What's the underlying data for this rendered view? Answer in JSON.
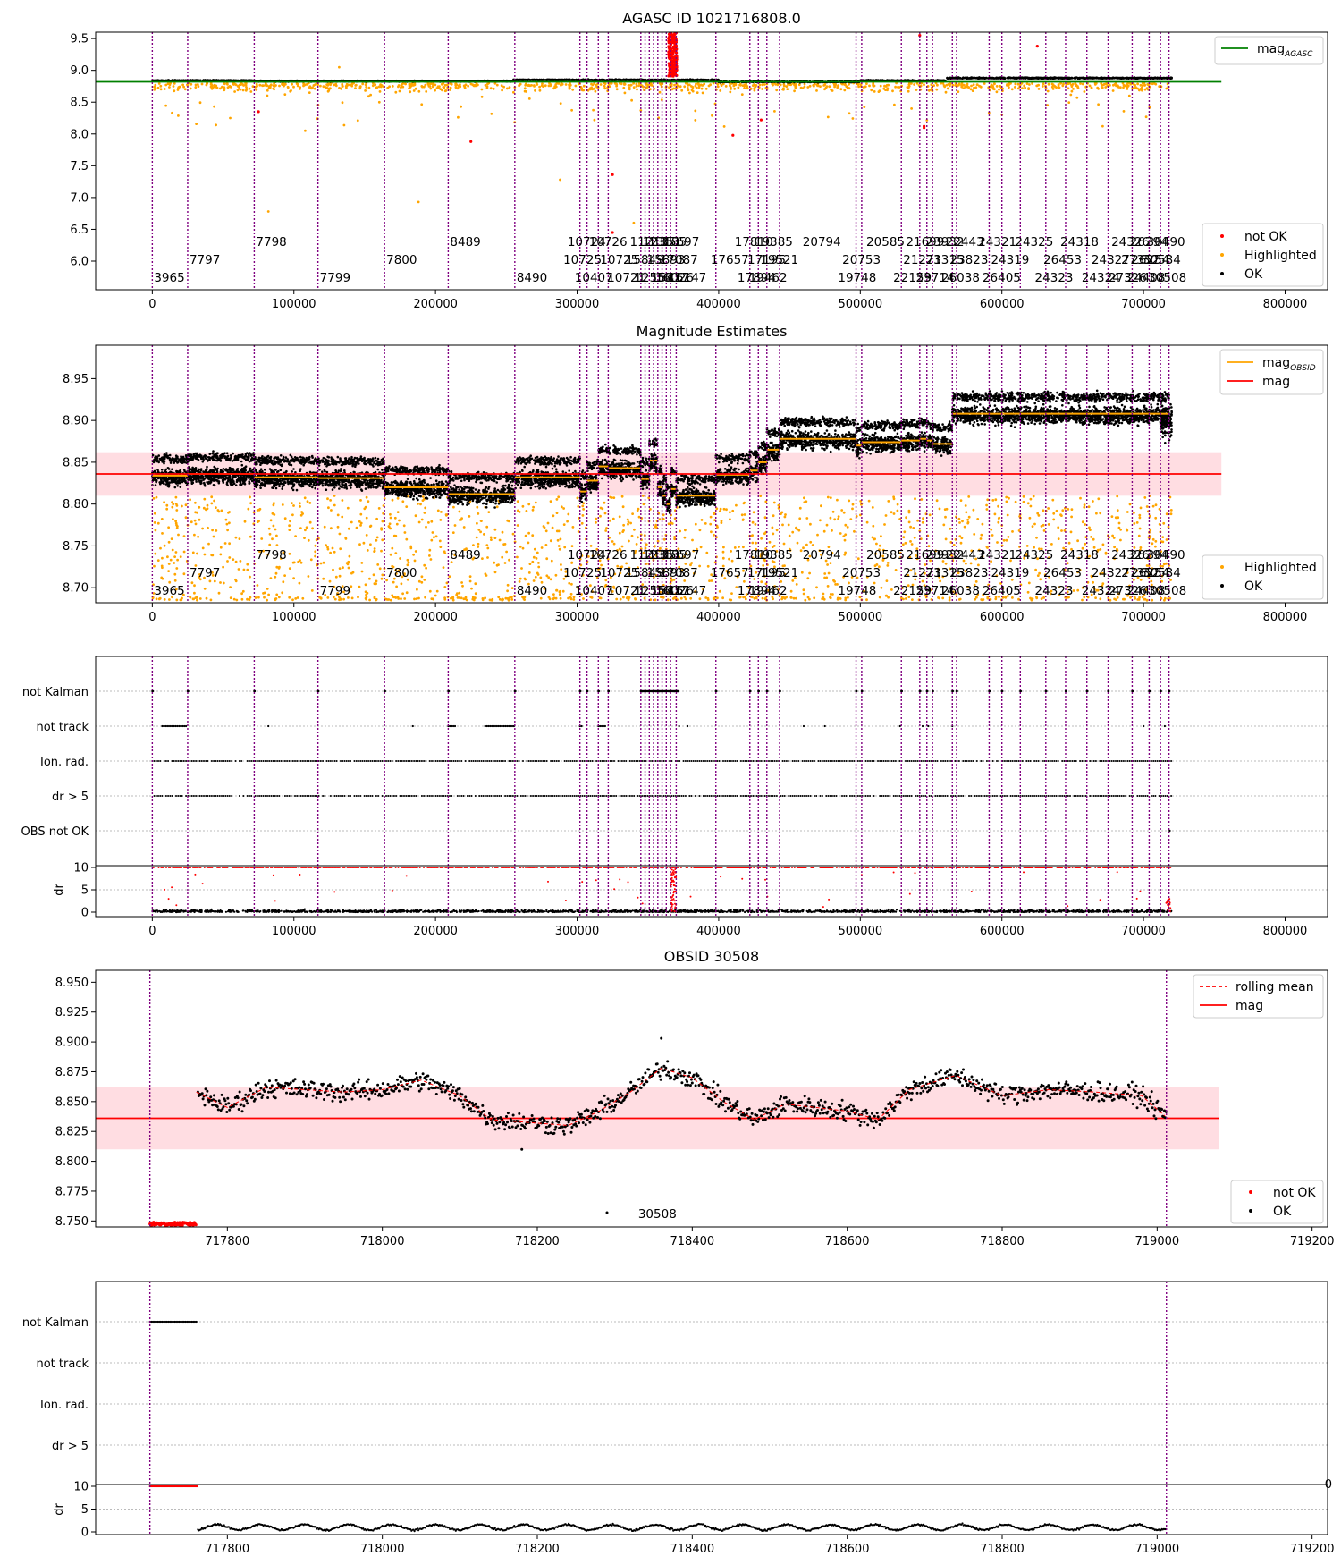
{
  "colors": {
    "ok": "#000000",
    "not_ok": "#ff0000",
    "highlighted": "#ffa500",
    "mag_agasc": "#008000",
    "mag": "#ff0000",
    "mag_obsid": "#ffa500",
    "obsid_line": "#800080",
    "band": "#ffdde2",
    "grid": "#bbbbbb"
  },
  "chart_data": [
    {
      "type": "scatter",
      "title": "AGASC ID 1021716808.0",
      "xlim": [
        -40000,
        830000
      ],
      "ylim": [
        5.55,
        9.6
      ],
      "xticks": [
        0,
        100000,
        200000,
        300000,
        400000,
        500000,
        600000,
        700000,
        800000
      ],
      "yticks": [
        6.0,
        6.5,
        7.0,
        7.5,
        8.0,
        8.5,
        9.0,
        9.5
      ],
      "mag_agasc": 8.82,
      "legend_lines": [
        {
          "name": "mag$_{AGASC}$",
          "label": "mag",
          "sub": "AGASC",
          "color": "#008000"
        }
      ],
      "legend_points": [
        "not OK",
        "Highlighted",
        "OK"
      ],
      "series": [
        {
          "name": "OK",
          "color": "#000000",
          "segments": [
            [
              0,
              72000,
              8.84
            ],
            [
              72000,
              255000,
              8.83
            ],
            [
              255000,
              400000,
              8.85
            ],
            [
              400000,
              500000,
              8.82
            ],
            [
              500000,
              560000,
              8.84
            ],
            [
              560000,
              720000,
              8.88
            ]
          ]
        },
        {
          "name": "Highlighted",
          "color": "#ffa500",
          "band": [
            8.65,
            8.88
          ]
        },
        {
          "name": "not OK",
          "color": "#ff0000",
          "points": [
            [
              367000,
              9.55
            ],
            [
              368500,
              9.2
            ],
            [
              369000,
              8.95
            ],
            [
              75000,
              8.35
            ],
            [
              225000,
              7.88
            ],
            [
              325000,
              7.36
            ],
            [
              325000,
              6.45
            ],
            [
              410000,
              7.98
            ],
            [
              430000,
              8.22
            ],
            [
              542000,
              9.55
            ],
            [
              545000,
              8.12
            ],
            [
              545000,
              8.1
            ],
            [
              625000,
              9.38
            ]
          ]
        }
      ]
    },
    {
      "type": "scatter",
      "title": "Magnitude Estimates",
      "xlim": [
        -40000,
        830000
      ],
      "ylim": [
        8.682,
        8.99
      ],
      "xticks": [
        0,
        100000,
        200000,
        300000,
        400000,
        500000,
        600000,
        700000,
        800000
      ],
      "yticks": [
        8.7,
        8.75,
        8.8,
        8.85,
        8.9,
        8.95
      ],
      "mag": 8.836,
      "mag_band": [
        8.81,
        8.862
      ],
      "legend_lines": [
        {
          "label": "mag",
          "sub": "OBSID",
          "color": "#ffa500"
        },
        {
          "label": "mag",
          "sub": "",
          "color": "#ff0000"
        }
      ],
      "legend_points": [
        "Highlighted",
        "OK"
      ],
      "obsid_mags": [
        8.834,
        8.836,
        8.832,
        8.831,
        8.82,
        8.812,
        8.832,
        8.815,
        8.828,
        8.845,
        8.843,
        8.83,
        8.83,
        8.852,
        8.852,
        8.82,
        8.81,
        8.8,
        8.818,
        8.81,
        8.835,
        8.84,
        8.85,
        8.865,
        8.878,
        8.87,
        8.874,
        8.876,
        8.878,
        8.876,
        8.872,
        8.908
      ]
    },
    {
      "type": "scatter",
      "title": "",
      "xlim": [
        -40000,
        830000
      ],
      "xticks": [
        0,
        100000,
        200000,
        300000,
        400000,
        500000,
        600000,
        700000,
        800000
      ],
      "flag_labels": [
        "not Kalman",
        "not track",
        "Ion. rad.",
        "dr > 5",
        "OBS not OK"
      ],
      "dr_yticks": [
        0,
        5,
        10
      ],
      "dr_label": "dr"
    },
    {
      "type": "scatter",
      "title": "OBSID 30508",
      "xlim": [
        717630,
        719220
      ],
      "ylim": [
        8.745,
        8.96
      ],
      "xticks": [
        717800,
        718000,
        718200,
        718400,
        718600,
        718800,
        719000,
        719200
      ],
      "yticks": [
        8.75,
        8.775,
        8.8,
        8.825,
        8.85,
        8.875,
        8.9,
        8.925,
        8.95
      ],
      "mag": 8.836,
      "mag_band": [
        8.81,
        8.862
      ],
      "legend_lines": [
        {
          "label": "rolling mean",
          "sub": "",
          "color": "#ff0000",
          "dashed": true
        },
        {
          "label": "mag",
          "sub": "",
          "color": "#ff0000"
        }
      ],
      "legend_points": [
        "not OK",
        "OK"
      ],
      "rolling_mean": [
        [
          717760,
          8.858
        ],
        [
          717800,
          8.845
        ],
        [
          717850,
          8.862
        ],
        [
          717900,
          8.86
        ],
        [
          717950,
          8.858
        ],
        [
          718000,
          8.86
        ],
        [
          718050,
          8.868
        ],
        [
          718100,
          8.855
        ],
        [
          718140,
          8.835
        ],
        [
          718200,
          8.832
        ],
        [
          718240,
          8.83
        ],
        [
          718280,
          8.842
        ],
        [
          718320,
          8.858
        ],
        [
          718360,
          8.878
        ],
        [
          718400,
          8.87
        ],
        [
          718440,
          8.85
        ],
        [
          718480,
          8.835
        ],
        [
          718520,
          8.848
        ],
        [
          718560,
          8.845
        ],
        [
          718600,
          8.842
        ],
        [
          718640,
          8.835
        ],
        [
          718680,
          8.86
        ],
        [
          718740,
          8.872
        ],
        [
          718800,
          8.855
        ],
        [
          718860,
          8.86
        ],
        [
          718920,
          8.858
        ],
        [
          718980,
          8.855
        ],
        [
          719010,
          8.838
        ]
      ],
      "outlier_points": [
        [
          718290,
          8.757
        ],
        [
          718360,
          8.903
        ],
        [
          718180,
          8.81
        ]
      ]
    },
    {
      "type": "scatter",
      "title": "",
      "xlim": [
        717630,
        719220
      ],
      "xticks": [
        717800,
        718000,
        718200,
        718400,
        718600,
        718800,
        719000,
        719200
      ],
      "flag_labels": [
        "not Kalman",
        "not track",
        "Ion. rad.",
        "dr > 5"
      ],
      "dr_yticks": [
        0,
        5,
        10
      ],
      "dr_label": "dr"
    }
  ],
  "obsid_lines": [
    0,
    25000,
    72000,
    117000,
    164000,
    209000,
    256000,
    302000,
    307000,
    315000,
    322000,
    345000,
    348000,
    351000,
    354000,
    357000,
    360000,
    363000,
    366000,
    370000,
    398000,
    422000,
    428000,
    434000,
    443000,
    497000,
    501000,
    529000,
    542000,
    547000,
    551000,
    565000,
    568000,
    591000,
    600000,
    613000,
    631000,
    645000,
    660000,
    675000,
    692000,
    704000,
    712000,
    718000
  ],
  "obsid_labels": [
    {
      "text": "3965",
      "x": 0,
      "row": 3
    },
    {
      "text": "7797",
      "x": 25000,
      "row": 2
    },
    {
      "text": "7798",
      "x": 72000,
      "row": 1
    },
    {
      "text": "7799",
      "x": 117000,
      "row": 3
    },
    {
      "text": "7800",
      "x": 164000,
      "row": 2
    },
    {
      "text": "8489",
      "x": 209000,
      "row": 1
    },
    {
      "text": "8490",
      "x": 256000,
      "row": 3
    },
    {
      "text": "10724",
      "x": 292000,
      "row": 1
    },
    {
      "text": "10725",
      "x": 289000,
      "row": 2
    },
    {
      "text": "10407",
      "x": 297000,
      "row": 3
    },
    {
      "text": "10726",
      "x": 307000,
      "row": 1
    },
    {
      "text": "10725",
      "x": 315000,
      "row": 2
    },
    {
      "text": "10721",
      "x": 320000,
      "row": 3
    },
    {
      "text": "11213",
      "x": 336000,
      "row": 1
    },
    {
      "text": "15849",
      "x": 333000,
      "row": 2
    },
    {
      "text": "12550",
      "x": 339000,
      "row": 3
    },
    {
      "text": "12351",
      "x": 345000,
      "row": 1
    },
    {
      "text": "15893",
      "x": 348000,
      "row": 2
    },
    {
      "text": "15417",
      "x": 351000,
      "row": 3
    },
    {
      "text": "13185",
      "x": 349000,
      "row": 1
    },
    {
      "text": "16026",
      "x": 354000,
      "row": 3
    },
    {
      "text": "15697",
      "x": 358000,
      "row": 1
    },
    {
      "text": "17087",
      "x": 357000,
      "row": 2
    },
    {
      "text": "16147",
      "x": 363000,
      "row": 3
    },
    {
      "text": "17657",
      "x": 393000,
      "row": 2
    },
    {
      "text": "17810",
      "x": 410000,
      "row": 1
    },
    {
      "text": "17894",
      "x": 412000,
      "row": 3
    },
    {
      "text": "17195",
      "x": 419000,
      "row": 2
    },
    {
      "text": "19385",
      "x": 424000,
      "row": 1
    },
    {
      "text": "19521",
      "x": 428000,
      "row": 2
    },
    {
      "text": "19462",
      "x": 420000,
      "row": 3
    },
    {
      "text": "20794",
      "x": 458000,
      "row": 1
    },
    {
      "text": "20753",
      "x": 486000,
      "row": 2
    },
    {
      "text": "19748",
      "x": 483000,
      "row": 3
    },
    {
      "text": "20585",
      "x": 503000,
      "row": 1
    },
    {
      "text": "21699",
      "x": 531000,
      "row": 1
    },
    {
      "text": "21271",
      "x": 529000,
      "row": 2
    },
    {
      "text": "22159",
      "x": 522000,
      "row": 3
    },
    {
      "text": "23932",
      "x": 545000,
      "row": 1
    },
    {
      "text": "23315",
      "x": 545000,
      "row": 2
    },
    {
      "text": "23714",
      "x": 538000,
      "row": 3
    },
    {
      "text": "22443",
      "x": 559000,
      "row": 1
    },
    {
      "text": "23823",
      "x": 562000,
      "row": 2
    },
    {
      "text": "26038",
      "x": 556000,
      "row": 3
    },
    {
      "text": "24321",
      "x": 582000,
      "row": 1
    },
    {
      "text": "24319",
      "x": 591000,
      "row": 2
    },
    {
      "text": "26405",
      "x": 585000,
      "row": 3
    },
    {
      "text": "24325",
      "x": 608000,
      "row": 1
    },
    {
      "text": "26453",
      "x": 628000,
      "row": 2
    },
    {
      "text": "24323",
      "x": 622000,
      "row": 3
    },
    {
      "text": "24318",
      "x": 640000,
      "row": 1
    },
    {
      "text": "24327",
      "x": 662000,
      "row": 2
    },
    {
      "text": "24324",
      "x": 655000,
      "row": 3
    },
    {
      "text": "24326",
      "x": 676000,
      "row": 1
    },
    {
      "text": "27352",
      "x": 683000,
      "row": 2
    },
    {
      "text": "27326",
      "x": 674000,
      "row": 3
    },
    {
      "text": "26294",
      "x": 689000,
      "row": 1
    },
    {
      "text": "26254",
      "x": 690000,
      "row": 2
    },
    {
      "text": "24408",
      "x": 687000,
      "row": 3
    },
    {
      "text": "30490",
      "x": 701000,
      "row": 1
    },
    {
      "text": "30534",
      "x": 698000,
      "row": 2
    },
    {
      "text": "30508",
      "x": 702000,
      "row": 3
    }
  ],
  "obsid_detail_label": "30508",
  "stray_tick_label": "0"
}
